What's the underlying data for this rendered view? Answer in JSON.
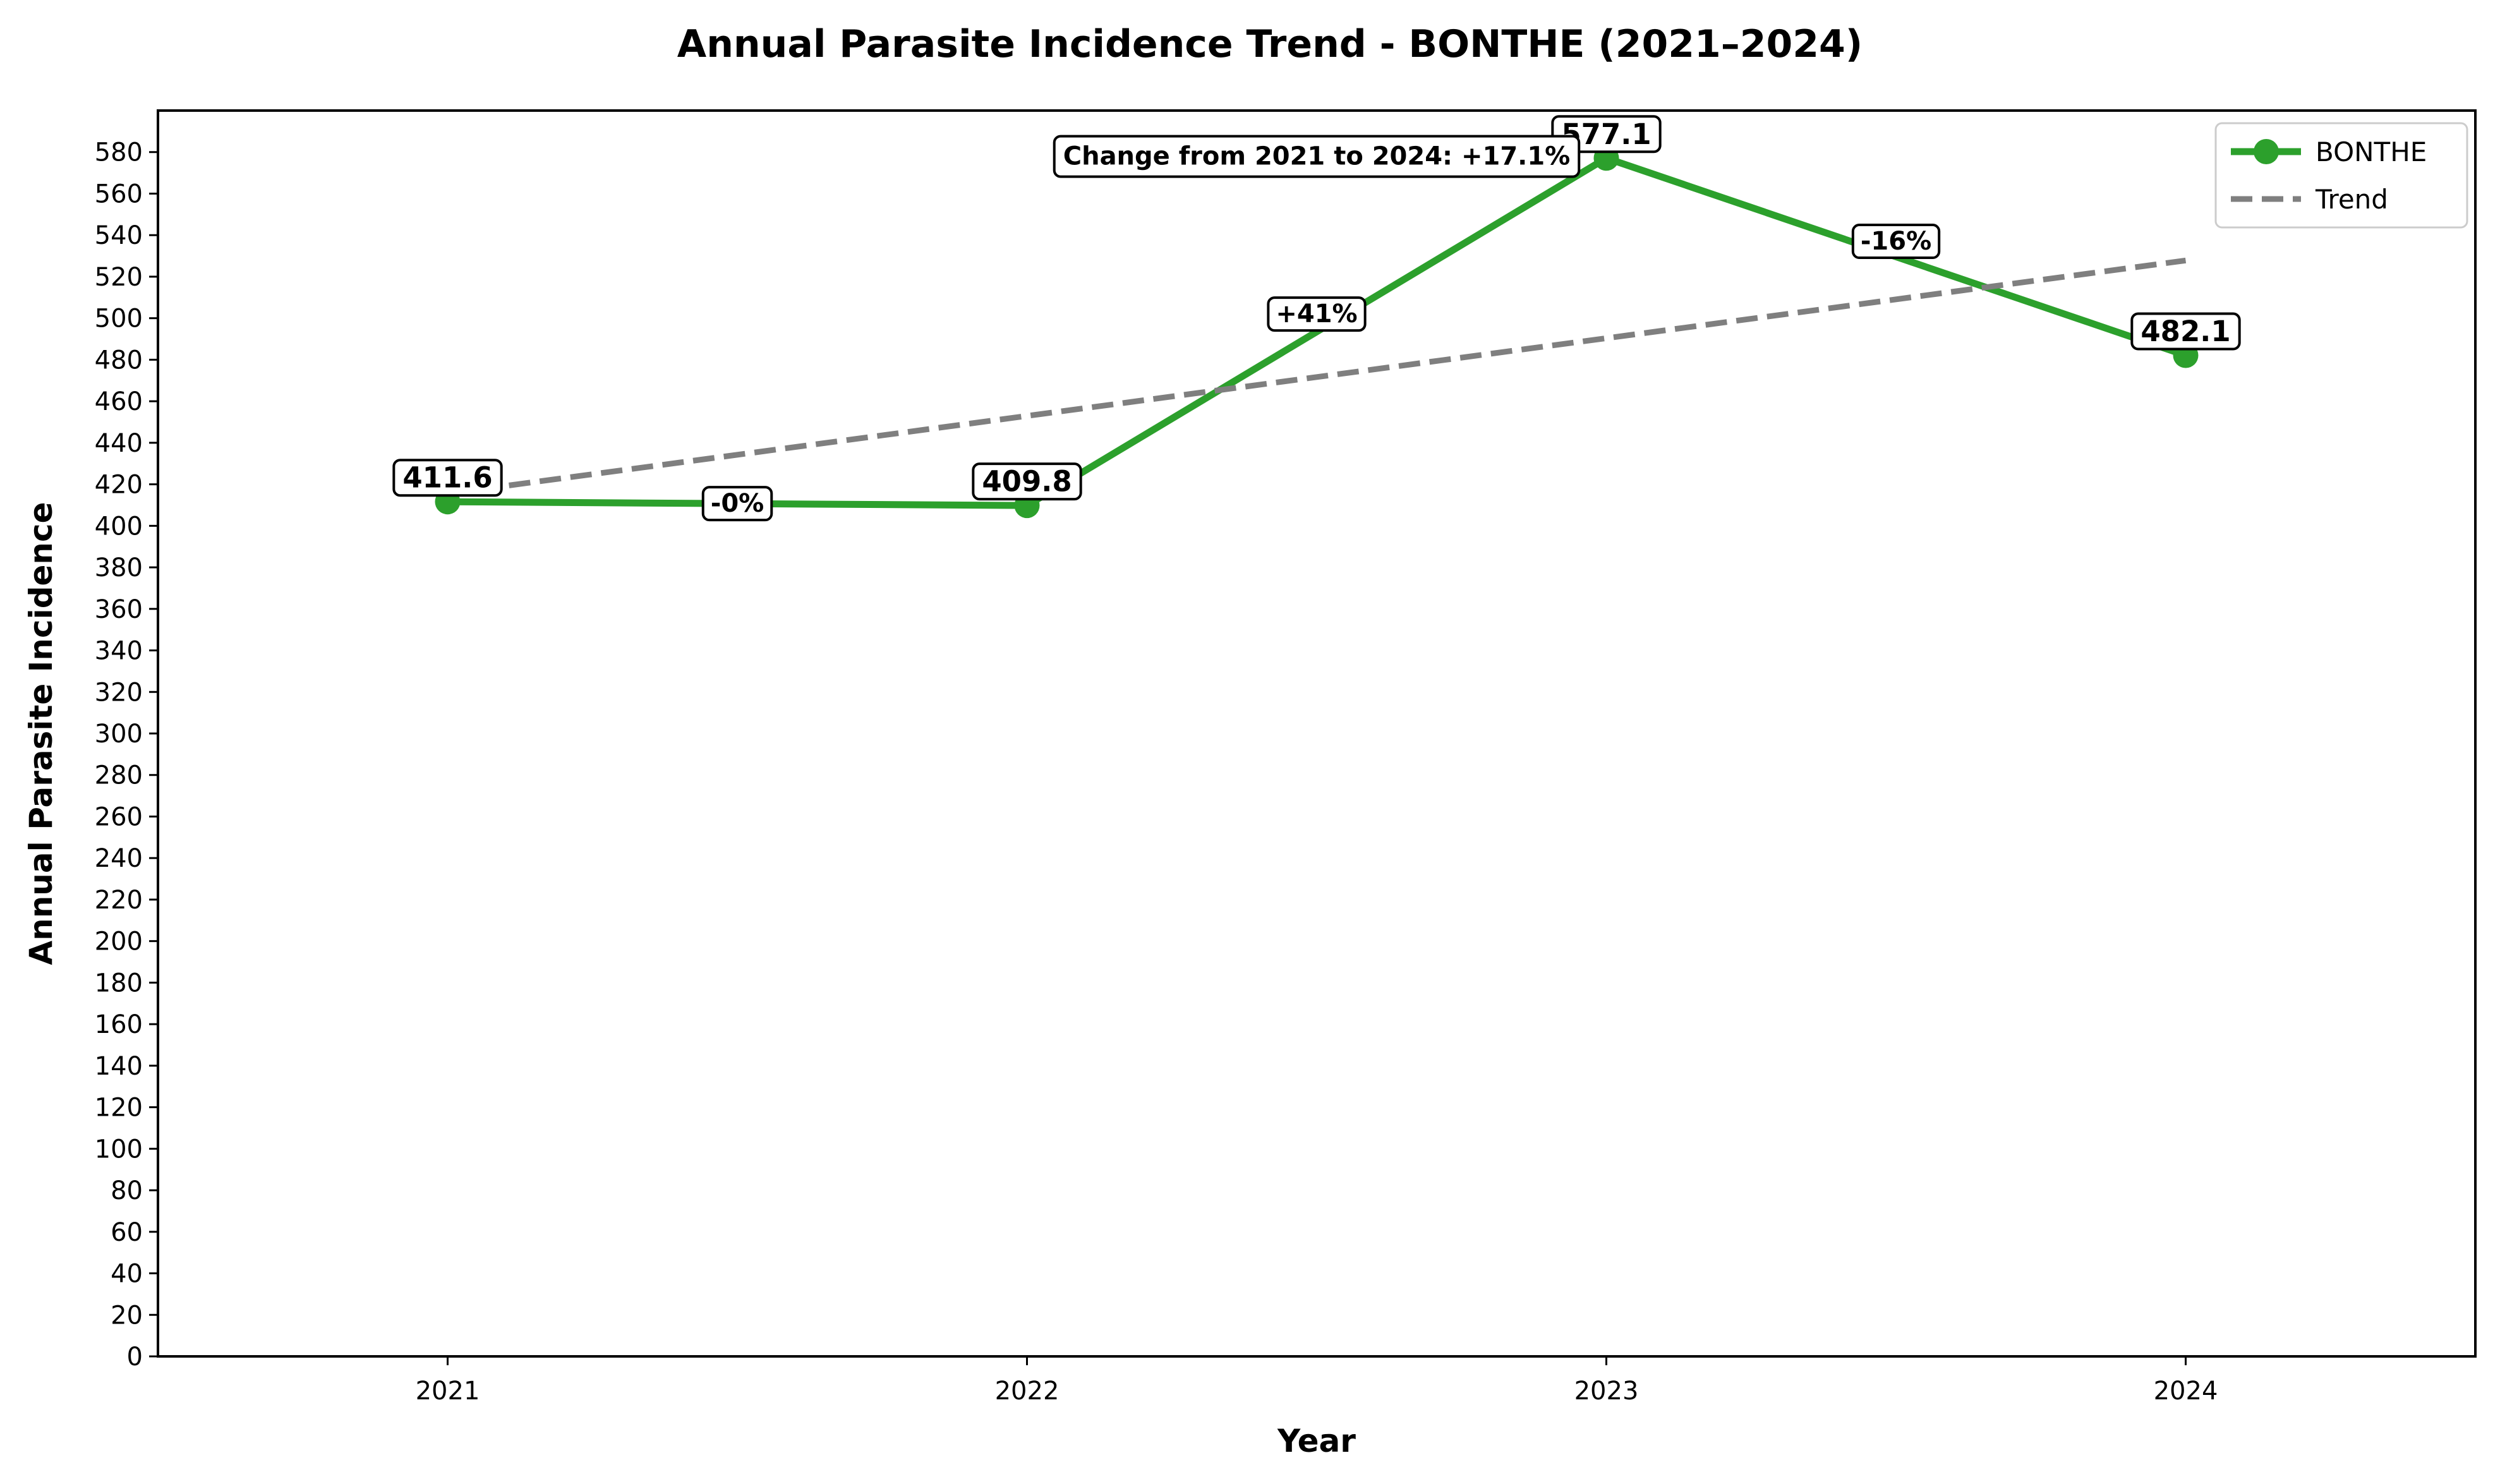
{
  "chart_data": {
    "type": "line",
    "title": "Annual Parasite Incidence Trend - BONTHE (2021–2024)",
    "xlabel": "Year",
    "ylabel": "Annual Parasite Incidence",
    "x": [
      2021,
      2022,
      2023,
      2024
    ],
    "x_tick_labels": [
      "2021",
      "2022",
      "2023",
      "2024"
    ],
    "xlim": [
      2020.5,
      2024.5
    ],
    "ylim": [
      0,
      600
    ],
    "y_ticks": [
      0,
      20,
      40,
      60,
      80,
      100,
      120,
      140,
      160,
      180,
      200,
      220,
      240,
      260,
      280,
      300,
      320,
      340,
      360,
      380,
      400,
      420,
      440,
      460,
      480,
      500,
      520,
      540,
      560,
      580
    ],
    "series": [
      {
        "name": "BONTHE",
        "color": "#2ca02c",
        "values": [
          411.6,
          409.8,
          577.1,
          482.1
        ],
        "value_labels": [
          "411.6",
          "409.8",
          "577.1",
          "482.1"
        ]
      }
    ],
    "trend": {
      "name": "Trend",
      "color": "#7f7f7f",
      "style": "dashed",
      "start": [
        2021,
        415.5
      ],
      "end": [
        2024,
        527.8
      ]
    },
    "pct_changes": [
      {
        "label": "-0%",
        "x": 2021.5,
        "y": 410.7
      },
      {
        "label": "+41%",
        "x": 2022.5,
        "y": 502
      },
      {
        "label": "-16%",
        "x": 2023.5,
        "y": 537
      }
    ],
    "annotation": {
      "text": "Change from 2021 to 2024: +17.1%",
      "x": 2022.5,
      "y": 577
    },
    "legend": {
      "position": "top-right",
      "entries": [
        "BONTHE",
        "Trend"
      ]
    },
    "grid": false
  }
}
